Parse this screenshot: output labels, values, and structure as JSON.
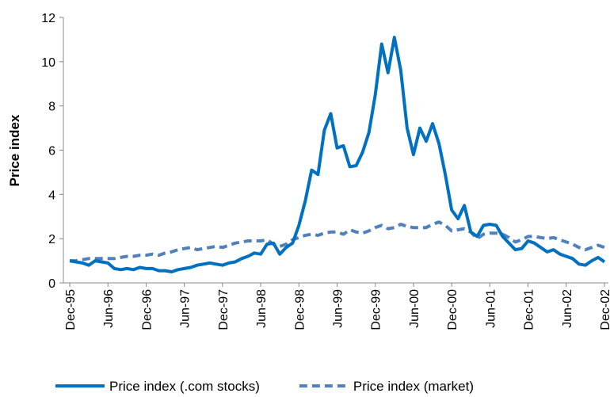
{
  "chart_data": {
    "type": "line",
    "y_label": "Price index",
    "categories": [
      "Dec-95",
      null,
      null,
      null,
      null,
      null,
      "Jun-96",
      null,
      null,
      null,
      null,
      null,
      "Dec-96",
      null,
      null,
      null,
      null,
      null,
      "Jun-97",
      null,
      null,
      null,
      null,
      null,
      "Dec-97",
      null,
      null,
      null,
      null,
      null,
      "Jun-98",
      null,
      null,
      null,
      null,
      null,
      "Dec-98",
      null,
      null,
      null,
      null,
      null,
      "Jun-99",
      null,
      null,
      null,
      null,
      null,
      "Dec-99",
      null,
      null,
      null,
      null,
      null,
      "Jun-00",
      null,
      null,
      null,
      null,
      null,
      "Dec-00",
      null,
      null,
      null,
      null,
      null,
      "Jun-01",
      null,
      null,
      null,
      null,
      null,
      "Dec-01",
      null,
      null,
      null,
      null,
      null,
      "Jun-02",
      null,
      null,
      null,
      null,
      null,
      "Dec-02"
    ],
    "series": [
      {
        "name": "Price index (.com stocks)",
        "color": "#0070c0",
        "dashed": false,
        "values": [
          1.0,
          0.95,
          0.9,
          0.8,
          1.0,
          0.95,
          0.9,
          0.65,
          0.6,
          0.65,
          0.6,
          0.7,
          0.65,
          0.65,
          0.55,
          0.55,
          0.5,
          0.6,
          0.65,
          0.7,
          0.8,
          0.85,
          0.9,
          0.85,
          0.8,
          0.9,
          0.95,
          1.1,
          1.2,
          1.35,
          1.3,
          1.75,
          1.8,
          1.3,
          1.6,
          1.8,
          2.6,
          3.7,
          5.1,
          4.9,
          6.9,
          7.65,
          6.1,
          6.2,
          5.25,
          5.3,
          5.9,
          6.8,
          8.5,
          10.8,
          9.5,
          11.1,
          9.6,
          7.0,
          5.8,
          7.0,
          6.4,
          7.2,
          6.3,
          4.9,
          3.3,
          2.9,
          3.5,
          2.3,
          2.1,
          2.6,
          2.65,
          2.6,
          2.1,
          1.8,
          1.5,
          1.55,
          1.9,
          1.8,
          1.6,
          1.4,
          1.5,
          1.3,
          1.2,
          1.1,
          0.85,
          0.8,
          1.0,
          1.15,
          0.95
        ]
      },
      {
        "name": "Price index (market)",
        "color": "#4f81bd",
        "dashed": true,
        "values": [
          1.0,
          1.0,
          1.05,
          1.1,
          1.1,
          1.1,
          1.1,
          1.1,
          1.15,
          1.2,
          1.2,
          1.25,
          1.25,
          1.3,
          1.25,
          1.35,
          1.4,
          1.5,
          1.55,
          1.6,
          1.5,
          1.55,
          1.6,
          1.65,
          1.6,
          1.7,
          1.8,
          1.85,
          1.9,
          1.9,
          1.9,
          1.95,
          1.75,
          1.65,
          1.75,
          1.95,
          2.05,
          2.15,
          2.2,
          2.15,
          2.25,
          2.3,
          2.3,
          2.2,
          2.4,
          2.3,
          2.25,
          2.35,
          2.5,
          2.6,
          2.45,
          2.5,
          2.65,
          2.55,
          2.5,
          2.5,
          2.5,
          2.65,
          2.75,
          2.6,
          2.35,
          2.4,
          2.45,
          2.3,
          2.0,
          2.2,
          2.25,
          2.25,
          2.2,
          2.05,
          1.85,
          1.95,
          2.1,
          2.1,
          2.05,
          2.0,
          2.05,
          1.95,
          1.85,
          1.75,
          1.6,
          1.5,
          1.6,
          1.7,
          1.6
        ]
      }
    ],
    "ylim": [
      0,
      12
    ],
    "yticks": [
      0,
      2,
      4,
      6,
      8,
      10,
      12
    ],
    "grid": false,
    "legend": "bottom"
  }
}
